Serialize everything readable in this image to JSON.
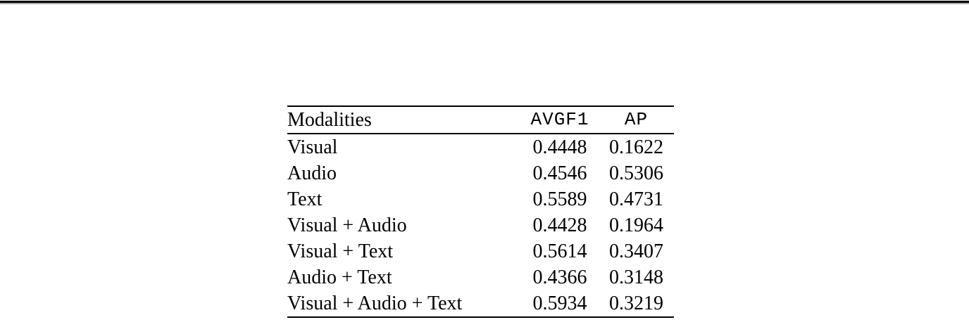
{
  "page": {
    "background": "#ffffff",
    "top_rule_color": "#000000"
  },
  "table": {
    "header": {
      "modalities": "Modalities",
      "avgf1": "AVGF1",
      "ap": "AP"
    },
    "rows": [
      {
        "modalities": "Visual",
        "avgf1": "0.4448",
        "ap": "0.1622",
        "avgf1_bold": false,
        "ap_bold": false
      },
      {
        "modalities": "Audio",
        "avgf1": "0.4546",
        "ap": "0.5306",
        "avgf1_bold": false,
        "ap_bold": true
      },
      {
        "modalities": "Text",
        "avgf1": "0.5589",
        "ap": "0.4731",
        "avgf1_bold": false,
        "ap_bold": false
      },
      {
        "modalities": "Visual + Audio",
        "avgf1": "0.4428",
        "ap": "0.1964",
        "avgf1_bold": false,
        "ap_bold": false
      },
      {
        "modalities": "Visual + Text",
        "avgf1": "0.5614",
        "ap": "0.3407",
        "avgf1_bold": false,
        "ap_bold": false
      },
      {
        "modalities": "Audio + Text",
        "avgf1": "0.4366",
        "ap": "0.3148",
        "avgf1_bold": false,
        "ap_bold": false
      },
      {
        "modalities": "Visual + Audio + Text",
        "avgf1": "0.5934",
        "ap": "0.3219",
        "avgf1_bold": true,
        "ap_bold": false
      }
    ]
  }
}
